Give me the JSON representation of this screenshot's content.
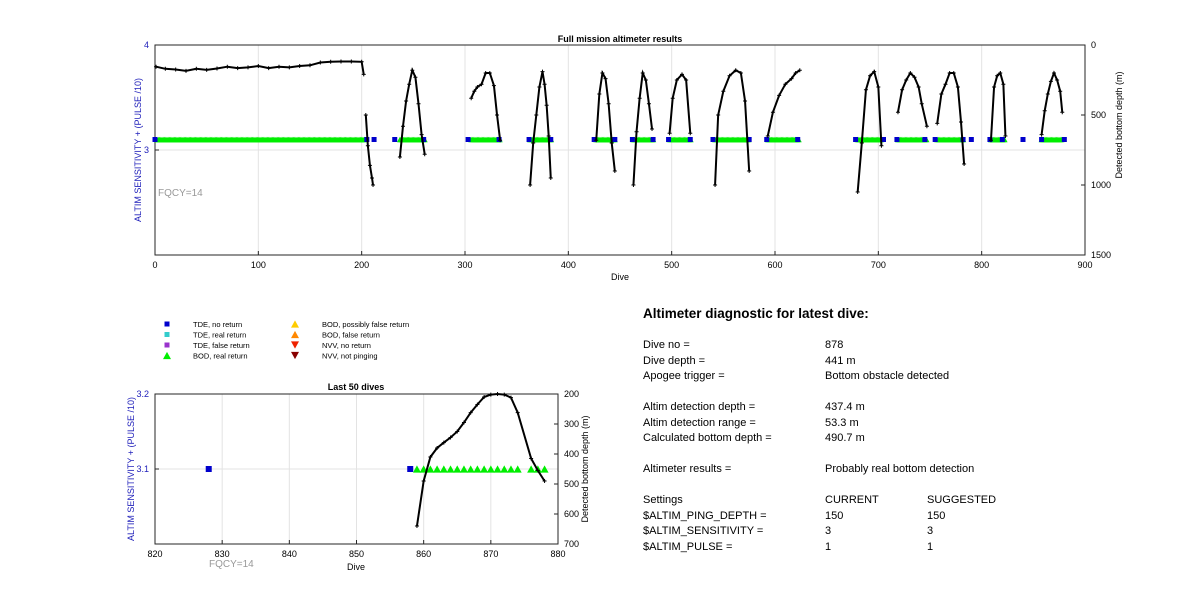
{
  "main_chart": {
    "title": "Full mission altimeter results",
    "xlabel": "Dive",
    "ylabel_left": "ALTIM SENSITIVITY + (PULSE /10)",
    "ylabel_right": "Detected bottom depth (m)",
    "annotation": "FQCY=14",
    "x_ticks": [
      "0",
      "100",
      "200",
      "300",
      "400",
      "500",
      "600",
      "700",
      "800",
      "900"
    ],
    "y_left_ticks": [
      "3",
      "4"
    ],
    "y_right_ticks": [
      "0",
      "500",
      "1000",
      "1500"
    ]
  },
  "bottom_chart": {
    "title": "Last 50 dives",
    "xlabel": "Dive",
    "ylabel_left": "ALTIM SENSITIVITY + (PULSE /10)",
    "ylabel_right": "Detected bottom depth (m)",
    "annotation": "FQCY=14",
    "x_ticks": [
      "820",
      "830",
      "840",
      "850",
      "860",
      "870",
      "880"
    ],
    "y_left_ticks": [
      "3.1",
      "3.2"
    ],
    "y_right_ticks": [
      "200",
      "300",
      "400",
      "500",
      "600",
      "700"
    ]
  },
  "legend": {
    "items": [
      {
        "label": "TDE, no return",
        "marker": "square",
        "color": "#0000cc"
      },
      {
        "label": "TDE, real return",
        "marker": "square",
        "color": "#33cccc"
      },
      {
        "label": "TDE, false return",
        "marker": "square",
        "color": "#9933cc"
      },
      {
        "label": "BOD, real return",
        "marker": "triangle-up",
        "color": "#00ee00"
      },
      {
        "label": "BOD, possibly false return",
        "marker": "triangle-up",
        "color": "#ffcc00"
      },
      {
        "label": "BOD, false return",
        "marker": "triangle-up",
        "color": "#ff8800"
      },
      {
        "label": "NVV, no return",
        "marker": "triangle-down",
        "color": "#ee2200"
      },
      {
        "label": "NVV, not pinging",
        "marker": "triangle-down",
        "color": "#880000"
      }
    ]
  },
  "diagnostic": {
    "heading": "Altimeter diagnostic for latest dive:",
    "dive_no_label": "Dive no =",
    "dive_no": "878",
    "dive_depth_label": "Dive depth =",
    "dive_depth": "441 m",
    "apogee_label": "Apogee trigger =",
    "apogee": "Bottom obstacle detected",
    "detect_depth_label": "Altim detection depth =",
    "detect_depth": "437.4 m",
    "detect_range_label": "Altim detection range =",
    "detect_range": "53.3 m",
    "calc_depth_label": "Calculated bottom depth =",
    "calc_depth": "490.7 m",
    "results_label": "Altimeter results =",
    "results": "Probably real bottom detection",
    "settings_label": "Settings",
    "current_label": "CURRENT",
    "suggested_label": "SUGGESTED",
    "settings": [
      {
        "name": "$ALTIM_PING_DEPTH =",
        "current": "150",
        "suggested": "150"
      },
      {
        "name": "$ALTIM_SENSITIVITY =",
        "current": "3",
        "suggested": "3"
      },
      {
        "name": "$ALTIM_PULSE =",
        "current": "1",
        "suggested": "1"
      }
    ]
  },
  "chart_data": [
    {
      "type": "scatter",
      "title": "Full mission altimeter results",
      "xlabel": "Dive",
      "ylabel": "ALTIM SENSITIVITY + (PULSE /10)",
      "ylabel_right": "Detected bottom depth (m)",
      "xlim": [
        0,
        900
      ],
      "ylim_left": [
        2.0,
        4.0
      ],
      "ylim_right": [
        1500,
        0
      ],
      "grid": true,
      "sensitivity_series": [
        {
          "name": "TDE, no return",
          "marker": "square",
          "color": "#0000cc",
          "x": [
            0,
            205,
            212,
            232,
            260,
            303,
            333,
            362,
            383,
            425,
            445,
            462,
            482,
            497,
            518,
            540,
            575,
            592,
            622,
            678,
            705,
            718,
            745,
            755,
            782,
            790,
            808,
            820,
            840,
            858,
            880
          ],
          "y": 3.1
        },
        {
          "name": "BOD, real return",
          "marker": "triangle-up",
          "color": "#00ee00",
          "ranges": [
            [
              2,
              203
            ],
            [
              237,
              262
            ],
            [
              306,
              334
            ],
            [
              363,
              384
            ],
            [
              427,
              446
            ],
            [
              463,
              483
            ],
            [
              498,
              519
            ],
            [
              542,
              575
            ],
            [
              593,
              624
            ],
            [
              680,
              703
            ],
            [
              719,
              747
            ],
            [
              757,
              783
            ],
            [
              809,
              823
            ],
            [
              858,
              878
            ]
          ],
          "y": 3.1
        }
      ],
      "depth_series": {
        "name": "Detected bottom depth",
        "color": "#000000",
        "segments": [
          {
            "x": [
              1,
              10,
              20,
              30,
              40,
              50,
              60,
              70,
              80,
              90,
              100,
              110,
              120,
              130,
              140,
              150,
              160,
              170,
              180,
              190,
              200,
              202
            ],
            "y": [
              155,
              170,
              175,
              185,
              170,
              178,
              168,
              155,
              165,
              160,
              150,
              165,
              155,
              160,
              150,
              145,
              125,
              120,
              118,
              118,
              120,
              210
            ]
          },
          {
            "x": [
              204,
              206,
              208,
              210,
              211
            ],
            "y": [
              500,
              720,
              860,
              950,
              1000
            ]
          },
          {
            "x": [
              237,
              240,
              243,
              246,
              249,
              252,
              255,
              258,
              261
            ],
            "y": [
              800,
              580,
              400,
              280,
              180,
              230,
              420,
              640,
              780
            ]
          },
          {
            "x": [
              306,
              309,
              312,
              316,
              320,
              324,
              328,
              331,
              334
            ],
            "y": [
              380,
              330,
              300,
              280,
              200,
              200,
              290,
              500,
              680
            ]
          },
          {
            "x": [
              363,
              366,
              369,
              372,
              375,
              377,
              379,
              381,
              383
            ],
            "y": [
              1000,
              700,
              500,
              300,
              190,
              280,
              430,
              650,
              950
            ]
          },
          {
            "x": [
              427,
              430,
              433,
              436,
              439,
              442,
              445
            ],
            "y": [
              680,
              350,
              200,
              240,
              420,
              700,
              900
            ]
          },
          {
            "x": [
              463,
              466,
              469,
              472,
              475,
              478,
              481
            ],
            "y": [
              1000,
              620,
              380,
              200,
              250,
              420,
              600
            ]
          },
          {
            "x": [
              498,
              501,
              505,
              510,
              514,
              518
            ],
            "y": [
              630,
              380,
              250,
              210,
              250,
              630
            ]
          },
          {
            "x": [
              542,
              545,
              550,
              556,
              562,
              567,
              571,
              575
            ],
            "y": [
              1000,
              500,
              330,
              220,
              180,
              200,
              400,
              900
            ]
          },
          {
            "x": [
              593,
              598,
              604,
              610,
              616,
              620,
              624
            ],
            "y": [
              650,
              480,
              360,
              280,
              240,
              200,
              180
            ]
          },
          {
            "x": [
              680,
              684,
              688,
              692,
              696,
              700,
              703
            ],
            "y": [
              1050,
              700,
              320,
              220,
              190,
              300,
              720
            ]
          },
          {
            "x": [
              719,
              723,
              727,
              731,
              735,
              739,
              742,
              747
            ],
            "y": [
              480,
              320,
              250,
              200,
              230,
              300,
              420,
              580
            ]
          },
          {
            "x": [
              757,
              761,
              765,
              769,
              773,
              777,
              780,
              783
            ],
            "y": [
              560,
              350,
              280,
              200,
              200,
              300,
              550,
              850
            ]
          },
          {
            "x": [
              809,
              812,
              815,
              818,
              821,
              823
            ],
            "y": [
              680,
              300,
              220,
              200,
              280,
              650
            ]
          },
          {
            "x": [
              858,
              861,
              864,
              867,
              870,
              873,
              876,
              878
            ],
            "y": [
              640,
              470,
              350,
              260,
              200,
              250,
              330,
              480
            ]
          }
        ]
      }
    },
    {
      "type": "scatter",
      "title": "Last 50 dives",
      "xlabel": "Dive",
      "ylabel": "ALTIM SENSITIVITY + (PULSE /10)",
      "ylabel_right": "Detected bottom depth (m)",
      "xlim": [
        820,
        880
      ],
      "ylim_left": [
        3.0,
        3.2
      ],
      "ylim_right": [
        700,
        200
      ],
      "grid": true,
      "sensitivity_series": [
        {
          "name": "TDE, no return",
          "marker": "square",
          "color": "#0000cc",
          "x": [
            828,
            858
          ],
          "y": [
            3.1,
            3.1
          ]
        },
        {
          "name": "BOD, real return",
          "marker": "triangle-up",
          "color": "#00ee00",
          "x": [
            859,
            860,
            861,
            862,
            863,
            864,
            865,
            866,
            867,
            868,
            869,
            870,
            871,
            872,
            873,
            874,
            876,
            877,
            878
          ],
          "y": [
            3.1,
            3.1,
            3.1,
            3.1,
            3.1,
            3.1,
            3.1,
            3.1,
            3.1,
            3.1,
            3.1,
            3.1,
            3.1,
            3.1,
            3.1,
            3.1,
            3.1,
            3.1,
            3.1
          ]
        }
      ],
      "depth_series": {
        "name": "Detected bottom depth",
        "color": "#000000",
        "x": [
          859,
          860,
          861,
          862,
          863,
          864,
          865,
          866,
          867,
          868,
          869,
          870,
          871,
          872,
          873,
          874,
          876,
          877,
          878
        ],
        "y": [
          640,
          490,
          410,
          380,
          362,
          345,
          325,
          295,
          262,
          235,
          210,
          202,
          200,
          202,
          212,
          262,
          415,
          455,
          490
        ]
      }
    }
  ]
}
